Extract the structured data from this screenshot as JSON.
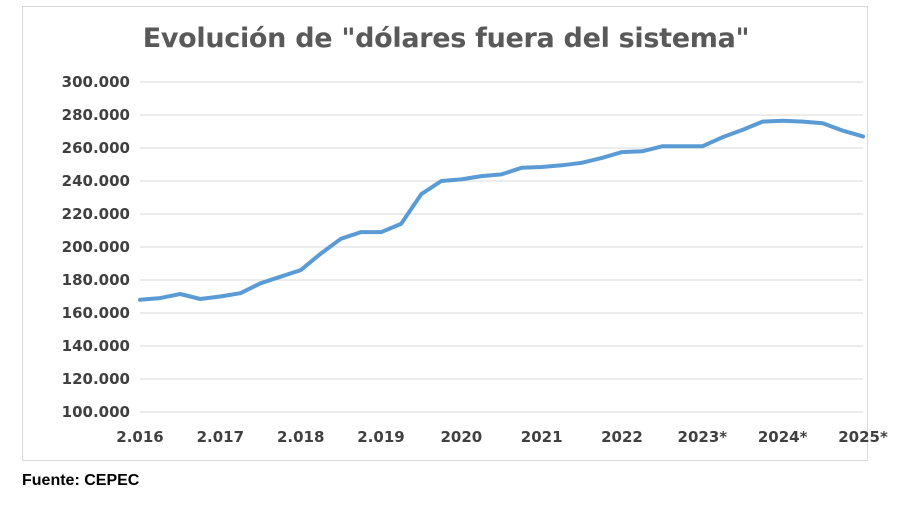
{
  "chart_data": {
    "type": "line",
    "title": "Evolución de \"dólares fuera del sistema\"",
    "xlabel": "",
    "ylabel": "",
    "ylim": [
      100000,
      300000
    ],
    "yticks": [
      "100.000",
      "120.000",
      "140.000",
      "160.000",
      "180.000",
      "200.000",
      "220.000",
      "240.000",
      "260.000",
      "280.000",
      "300.000"
    ],
    "xlim": [
      2016,
      2025
    ],
    "xticks": [
      "2.016",
      "2.017",
      "2.018",
      "2.019",
      "2020",
      "2021",
      "2022",
      "2023*",
      "2024*",
      "2025*"
    ],
    "grid": true,
    "legend": "none",
    "color": "#5b9bd5",
    "x": [
      2016.0,
      2016.25,
      2016.5,
      2016.75,
      2017.0,
      2017.25,
      2017.5,
      2017.75,
      2018.0,
      2018.25,
      2018.5,
      2018.75,
      2019.0,
      2019.25,
      2019.5,
      2019.75,
      2020.0,
      2020.25,
      2020.5,
      2020.75,
      2021.0,
      2021.25,
      2021.5,
      2021.75,
      2022.0,
      2022.25,
      2022.5,
      2022.75,
      2023.0,
      2023.25,
      2023.5,
      2023.75,
      2024.0,
      2024.25,
      2024.5,
      2024.75,
      2025.0
    ],
    "values": [
      168000,
      169000,
      171500,
      168500,
      170000,
      172000,
      178000,
      182000,
      186000,
      196000,
      205000,
      209000,
      209000,
      214000,
      232000,
      240000,
      241000,
      243000,
      244000,
      248000,
      248500,
      249500,
      251000,
      254000,
      257500,
      258000,
      261000,
      261000,
      261000,
      266500,
      271000,
      276000,
      276500,
      276000,
      275000,
      270500,
      267000
    ]
  },
  "footer": {
    "source": "Fuente: CEPEC"
  }
}
